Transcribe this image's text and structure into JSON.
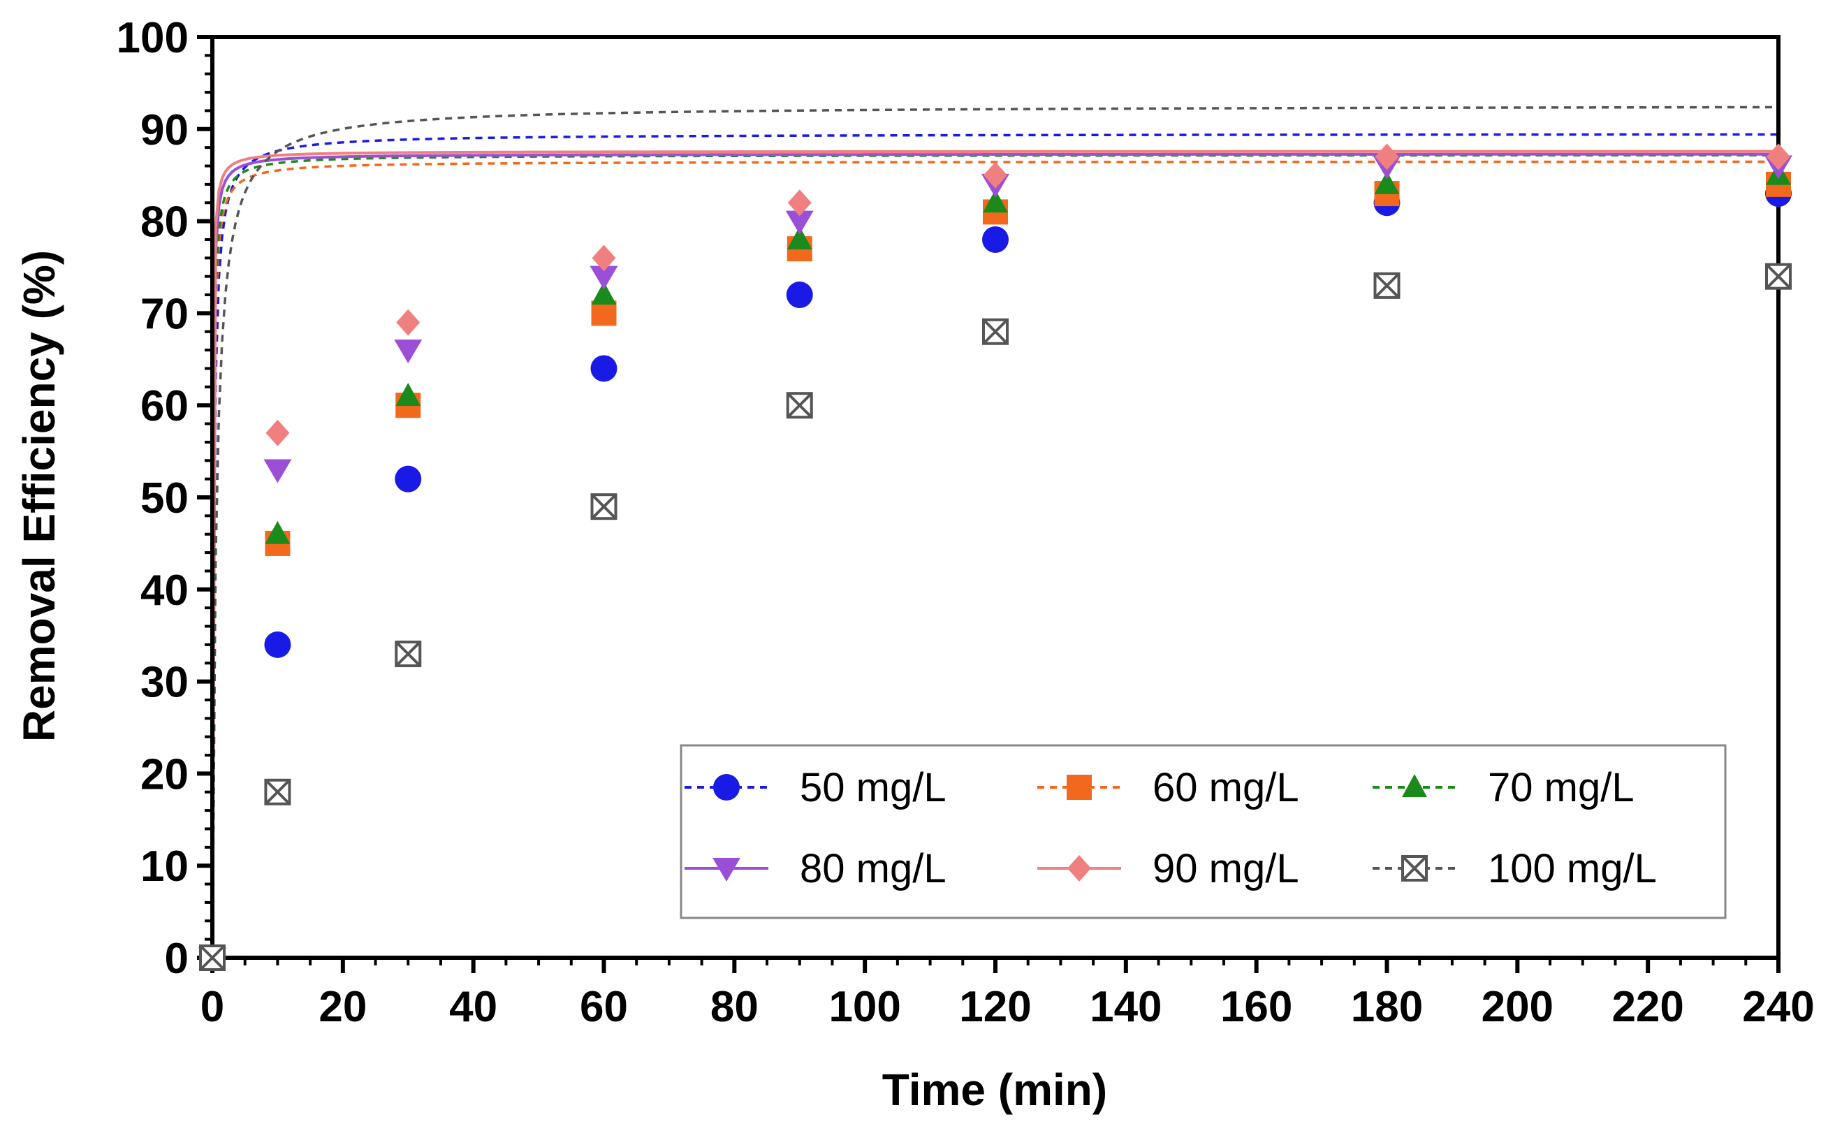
{
  "chart_data": {
    "type": "scatter",
    "title": "",
    "xlabel": "Time (min)",
    "ylabel": "Removal Efficiency (%)",
    "xlim": [
      0,
      240
    ],
    "ylim": [
      0,
      100
    ],
    "xticks": [
      0,
      20,
      40,
      60,
      80,
      100,
      120,
      140,
      160,
      180,
      200,
      220,
      240
    ],
    "yticks": [
      0,
      10,
      20,
      30,
      40,
      50,
      60,
      70,
      80,
      90,
      100
    ],
    "grid": false,
    "legend_position": "bottom-right",
    "x": [
      0,
      10,
      30,
      60,
      90,
      120,
      180,
      240
    ],
    "series": [
      {
        "name": "50 mg/L",
        "color": "#1a1ae6",
        "marker": "circle",
        "line": "dashed",
        "values": [
          0,
          34,
          52,
          64,
          72,
          78,
          82,
          83
        ],
        "fit": {
          "qmax": 89.5,
          "k": 0.0525
        }
      },
      {
        "name": "60 mg/L",
        "color": "#f2691e",
        "marker": "square",
        "line": "dashed",
        "values": [
          0,
          45,
          60,
          70,
          77,
          81,
          83,
          84
        ],
        "fit": {
          "qmax": 86.5,
          "k": 0.1
        }
      },
      {
        "name": "70 mg/L",
        "color": "#1a8a1a",
        "marker": "triangle-up",
        "line": "dashed",
        "values": [
          0,
          46,
          61,
          72,
          78,
          82,
          84,
          85
        ],
        "fit": {
          "qmax": 87.2,
          "k": 0.11
        }
      },
      {
        "name": "80 mg/L",
        "color": "#9b4fd6",
        "marker": "triangle-down",
        "line": "solid",
        "values": [
          0,
          53,
          66,
          74,
          80,
          84,
          86,
          86
        ],
        "fit": {
          "qmax": 87.3,
          "k": 0.165
        }
      },
      {
        "name": "90 mg/L",
        "color": "#f08080",
        "marker": "diamond",
        "line": "solid",
        "values": [
          0,
          57,
          69,
          76,
          82,
          85,
          87,
          87
        ],
        "fit": {
          "qmax": 87.6,
          "k": 0.22
        }
      },
      {
        "name": "100 mg/L",
        "color": "#555555",
        "marker": "boxed-x",
        "line": "dashed",
        "values": [
          0,
          18,
          33,
          49,
          60,
          68,
          73,
          74
        ],
        "fit": {
          "qmax": 92.6,
          "k": 0.0189
        }
      }
    ]
  }
}
